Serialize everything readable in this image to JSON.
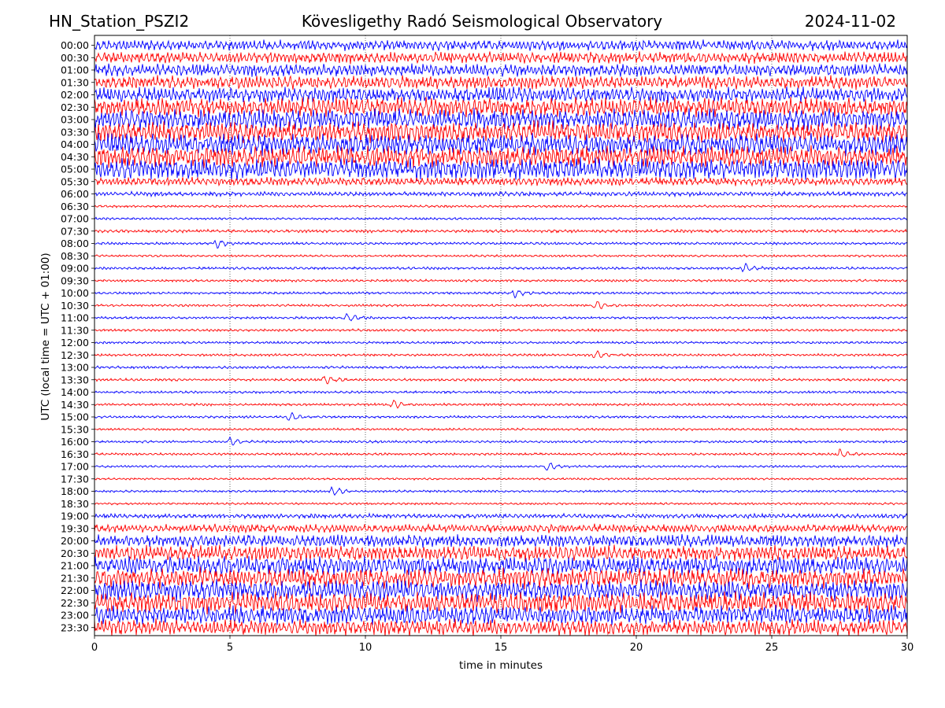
{
  "header": {
    "station": "HN_Station_PSZI2",
    "observatory": "Kövesligethy Radó Seismological Observatory",
    "date": "2024-11-02"
  },
  "chart_data": {
    "type": "line",
    "title": "Kövesligethy Radó Seismological Observatory",
    "xlabel": "time in minutes",
    "ylabel": "UTC (local time = UTC + 01:00)",
    "xlim": [
      0,
      30
    ],
    "xticks": [
      0,
      5,
      10,
      15,
      20,
      25,
      30
    ],
    "grid": "vertical dotted at each x tick",
    "colors": {
      "odd_rows": "#0000ff",
      "even_rows": "#ff0000"
    },
    "rows": [
      "00:00",
      "00:30",
      "01:00",
      "01:30",
      "02:00",
      "02:30",
      "03:00",
      "03:30",
      "04:00",
      "04:30",
      "05:00",
      "05:30",
      "06:00",
      "06:30",
      "07:00",
      "07:30",
      "08:00",
      "08:30",
      "09:00",
      "09:30",
      "10:00",
      "10:30",
      "11:00",
      "11:30",
      "12:00",
      "12:30",
      "13:00",
      "13:30",
      "14:00",
      "14:30",
      "15:00",
      "15:30",
      "16:00",
      "16:30",
      "17:00",
      "17:30",
      "18:00",
      "18:30",
      "19:00",
      "19:30",
      "20:00",
      "20:30",
      "21:00",
      "21:30",
      "22:00",
      "22:30",
      "23:00",
      "23:30"
    ],
    "relative_activity": [
      0.45,
      0.5,
      0.55,
      0.6,
      0.7,
      0.9,
      1.0,
      1.0,
      1.0,
      1.0,
      1.0,
      0.35,
      0.15,
      0.05,
      0.05,
      0.08,
      0.06,
      0.04,
      0.06,
      0.05,
      0.05,
      0.05,
      0.05,
      0.05,
      0.05,
      0.05,
      0.06,
      0.06,
      0.05,
      0.05,
      0.05,
      0.04,
      0.05,
      0.05,
      0.04,
      0.03,
      0.04,
      0.04,
      0.15,
      0.35,
      0.55,
      0.7,
      0.85,
      0.95,
      1.0,
      1.0,
      0.9,
      0.75
    ],
    "events": [
      {
        "row": "08:00",
        "minute": 4.5
      },
      {
        "row": "09:00",
        "minute": 24.0
      },
      {
        "row": "10:00",
        "minute": 15.5
      },
      {
        "row": "10:30",
        "minute": 18.5
      },
      {
        "row": "11:00",
        "minute": 9.3
      },
      {
        "row": "12:30",
        "minute": 18.5
      },
      {
        "row": "13:30",
        "minute": 8.5
      },
      {
        "row": "14:30",
        "minute": 11.0
      },
      {
        "row": "15:00",
        "minute": 7.2
      },
      {
        "row": "16:00",
        "minute": 5.0
      },
      {
        "row": "16:30",
        "minute": 27.5
      },
      {
        "row": "17:00",
        "minute": 16.7
      },
      {
        "row": "18:00",
        "minute": 8.8
      }
    ]
  }
}
